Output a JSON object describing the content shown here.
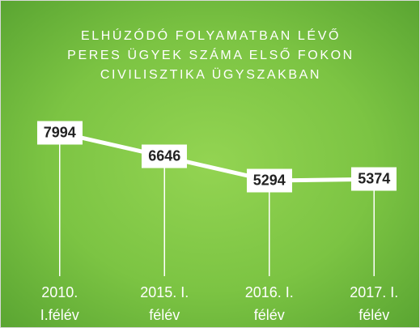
{
  "chart_data": {
    "type": "line",
    "title": "ELHÚZÓDÓ FOLYAMATBAN LÉVŐ\nPERES ÜGYEK SZÁMA ELSŐ FOKON\nCIVILISZTIKA ÜGYSZAKBAN",
    "categories": [
      "2010.\nI.félév",
      "2015. I.\nfélév",
      "2016. I.\nfélév",
      "2017. I.\nfélév"
    ],
    "series": [
      {
        "color": "#ffffff",
        "values": [
          7994,
          6646,
          5294,
          5374
        ]
      }
    ],
    "ylim": [
      0,
      10000
    ]
  }
}
